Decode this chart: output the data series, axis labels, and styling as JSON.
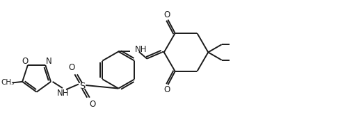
{
  "bg_color": "#ffffff",
  "line_color": "#1a1a1a",
  "line_width": 1.4,
  "font_size": 8.5,
  "fig_width": 4.96,
  "fig_height": 2.02,
  "dpi": 100,
  "xlim": [
    0,
    9.5
  ],
  "ylim": [
    0,
    3.5
  ]
}
